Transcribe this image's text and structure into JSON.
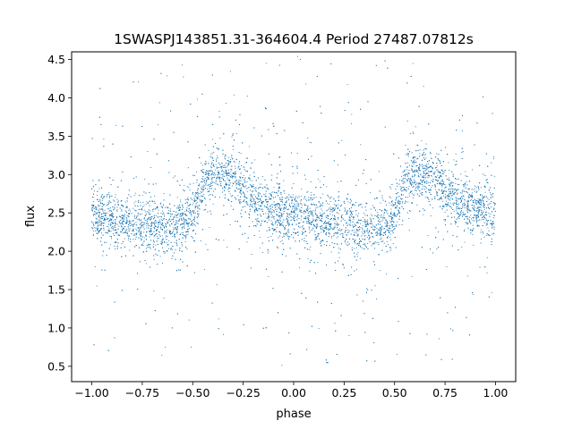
{
  "chart_data": {
    "type": "scatter",
    "title": "1SWASPJ143851.31-364604.4 Period 27487.07812s",
    "xlabel": "phase",
    "ylabel": "flux",
    "xlim": [
      -1.1,
      1.1
    ],
    "ylim": [
      0.3,
      4.6
    ],
    "xticks": [
      -1.0,
      -0.75,
      -0.5,
      -0.25,
      0.0,
      0.25,
      0.5,
      0.75,
      1.0
    ],
    "xtick_labels": [
      "−1.00",
      "−0.75",
      "−0.50",
      "−0.25",
      "0.00",
      "0.25",
      "0.50",
      "0.75",
      "1.00"
    ],
    "yticks": [
      0.5,
      1.0,
      1.5,
      2.0,
      2.5,
      3.0,
      3.5,
      4.0,
      4.5
    ],
    "ytick_labels": [
      "0.5",
      "1.0",
      "1.5",
      "2.0",
      "2.5",
      "3.0",
      "3.5",
      "4.0",
      "4.5"
    ],
    "grid": false,
    "marker_color": "#1f77b4",
    "series": [
      {
        "x": [
          -1.0,
          -0.9,
          -0.8,
          -0.7,
          -0.6,
          -0.5,
          -0.45,
          -0.4,
          -0.35,
          -0.3,
          -0.25,
          -0.2,
          -0.15,
          -0.1,
          -0.05,
          0.0,
          0.05,
          0.1,
          0.15,
          0.2,
          0.25,
          0.3,
          0.35,
          0.4,
          0.45,
          0.5,
          0.55,
          0.6,
          0.65,
          0.7,
          0.75,
          0.8,
          0.85,
          0.9,
          0.95,
          1.0
        ],
        "y": [
          2.45,
          2.42,
          2.38,
          2.32,
          2.3,
          2.45,
          2.85,
          3.0,
          3.0,
          2.95,
          2.8,
          2.65,
          2.6,
          2.55,
          2.5,
          2.48,
          2.45,
          2.42,
          2.4,
          2.38,
          2.35,
          2.32,
          2.3,
          2.3,
          2.35,
          2.45,
          2.85,
          3.0,
          3.0,
          2.95,
          2.8,
          2.65,
          2.6,
          2.55,
          2.52,
          2.5
        ]
      }
    ]
  }
}
